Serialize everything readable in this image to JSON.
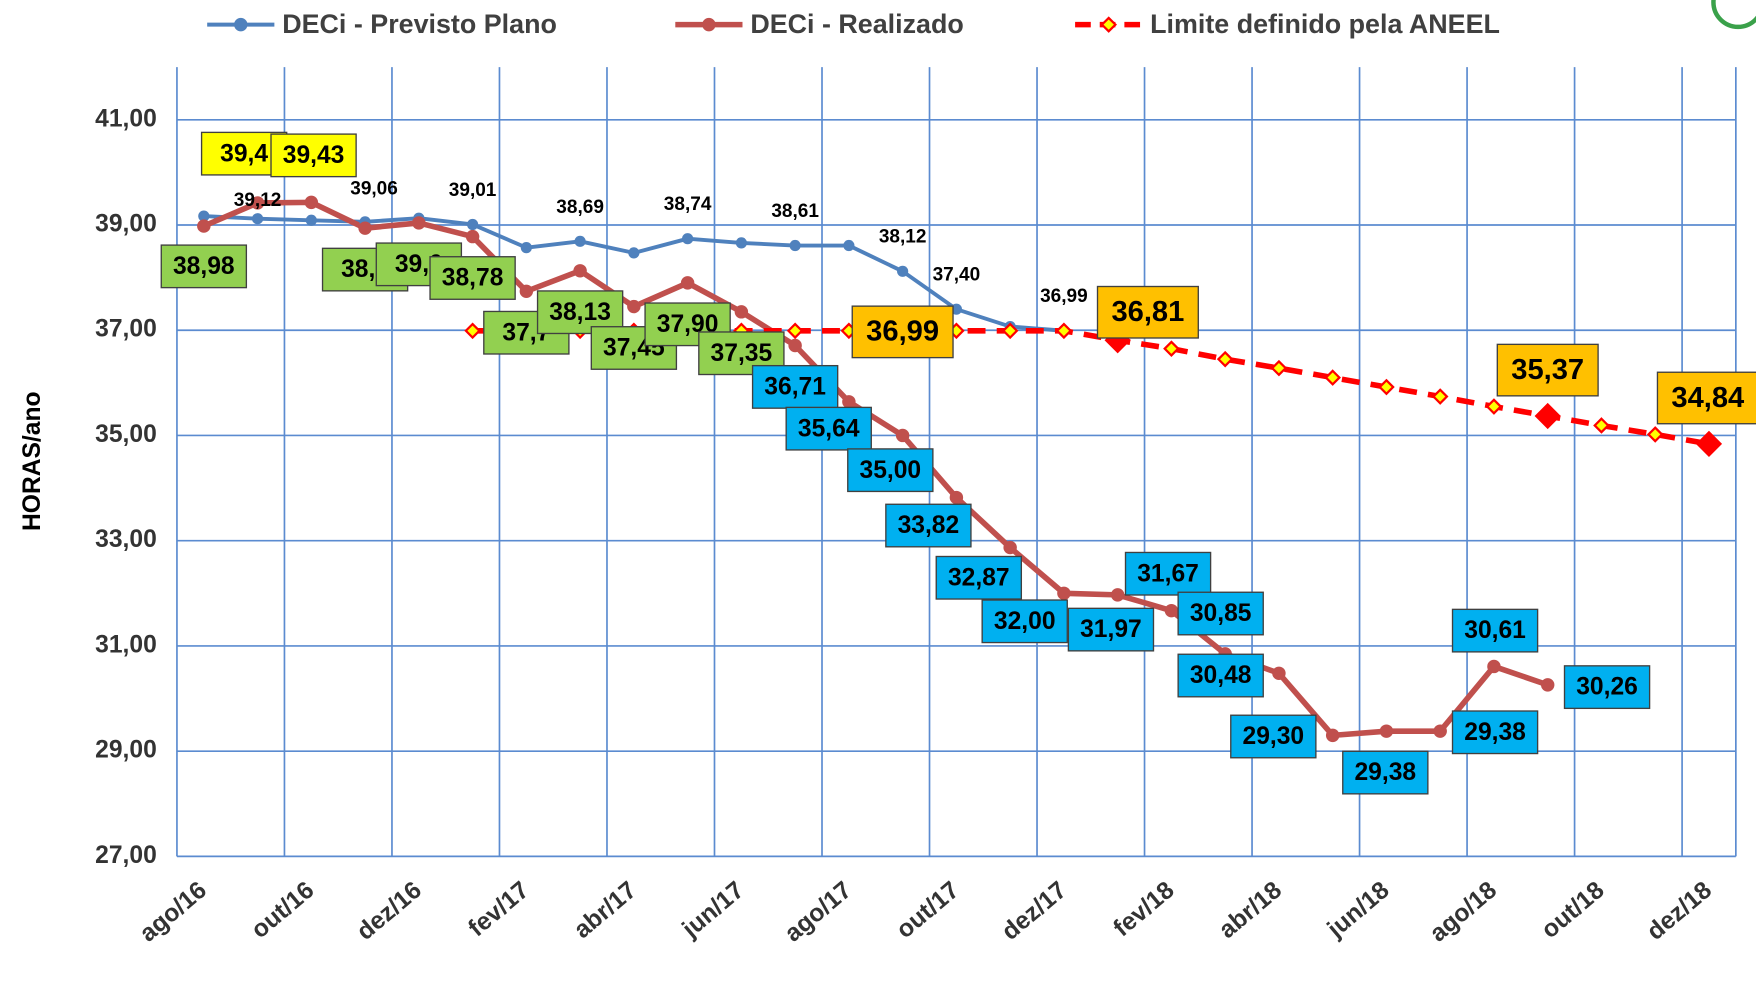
{
  "chart_data": {
    "type": "line",
    "y_label": "HORAS/ano",
    "categories": [
      "ago/16",
      null,
      "out/16",
      null,
      "dez/16",
      null,
      "fev/17",
      null,
      "abr/17",
      null,
      "jun/17",
      null,
      "ago/17",
      null,
      "out/17",
      null,
      "dez/17",
      null,
      "fev/18",
      null,
      "abr/18",
      null,
      "jun/18",
      null,
      "ago/18",
      null,
      "out/18",
      null,
      "dez/18"
    ],
    "ylim": [
      27,
      42
    ],
    "yticks": [
      {
        "value": 27,
        "label": "27,00"
      },
      {
        "value": 29,
        "label": "29,00"
      },
      {
        "value": 31,
        "label": "31,00"
      },
      {
        "value": 33,
        "label": "33,00"
      },
      {
        "value": 35,
        "label": "35,00"
      },
      {
        "value": 37,
        "label": "37,00"
      },
      {
        "value": 39,
        "label": "39,00"
      },
      {
        "value": 41,
        "label": "41,00"
      }
    ],
    "grid": true,
    "legend": "top",
    "series": [
      {
        "name": "DECi - Previsto Plano",
        "color": "#4f81bd",
        "values": [
          39.17,
          39.12,
          39.09,
          39.06,
          39.13,
          39.01,
          38.57,
          38.69,
          38.47,
          38.74,
          38.66,
          38.61,
          38.61,
          38.12,
          37.4,
          37.07,
          36.99,
          null,
          null,
          null,
          null,
          null,
          null,
          null,
          null,
          null,
          null,
          null,
          null
        ],
        "value_labels": [
          null,
          "39,12",
          null,
          "39,06",
          null,
          "39,01",
          null,
          "38,69",
          null,
          "38,74",
          null,
          "38,61",
          null,
          "38,12",
          "37,40",
          null,
          "36,99",
          null,
          null,
          null,
          null,
          null,
          null,
          null,
          null,
          null,
          null,
          null,
          null
        ]
      },
      {
        "name": "DECi - Realizado",
        "color": "#c0504d",
        "values": [
          38.98,
          39.42,
          39.43,
          38.94,
          39.04,
          38.78,
          37.74,
          38.13,
          37.45,
          37.9,
          37.35,
          36.71,
          35.64,
          35.0,
          33.82,
          32.87,
          32.0,
          31.97,
          31.67,
          30.85,
          30.48,
          29.3,
          29.38,
          29.38,
          30.61,
          30.26,
          null,
          null,
          null
        ],
        "value_labels": [
          "38,98",
          "39,4",
          "39,43",
          "38,9",
          "39,0",
          "38,78",
          "37,7",
          "38,13",
          "37,45",
          "37,90",
          "37,35",
          "36,71",
          "35,64",
          "35,00",
          "33,82",
          "32,87",
          "32,00",
          "31,97",
          "31,67",
          "30,85",
          "30,48",
          "29,30",
          "29,38",
          "29,38",
          "30,61",
          "30,26",
          null,
          null,
          null
        ]
      },
      {
        "name": "Limite definido pela ANEEL",
        "color": "#ff0000",
        "marker_color": "#ffff00",
        "dashed": true,
        "values": [
          null,
          null,
          null,
          null,
          null,
          36.99,
          36.99,
          36.99,
          36.99,
          36.99,
          36.99,
          36.99,
          36.99,
          36.99,
          36.99,
          36.99,
          36.99,
          36.81,
          36.65,
          36.45,
          36.28,
          36.1,
          35.92,
          35.74,
          35.55,
          35.37,
          35.19,
          35.02,
          34.84
        ],
        "value_labels": [
          null,
          null,
          null,
          null,
          null,
          null,
          null,
          null,
          null,
          null,
          null,
          null,
          null,
          "36,99",
          null,
          null,
          null,
          "36,81",
          null,
          null,
          null,
          null,
          null,
          null,
          null,
          "35,37",
          null,
          null,
          "34,84"
        ]
      }
    ]
  }
}
